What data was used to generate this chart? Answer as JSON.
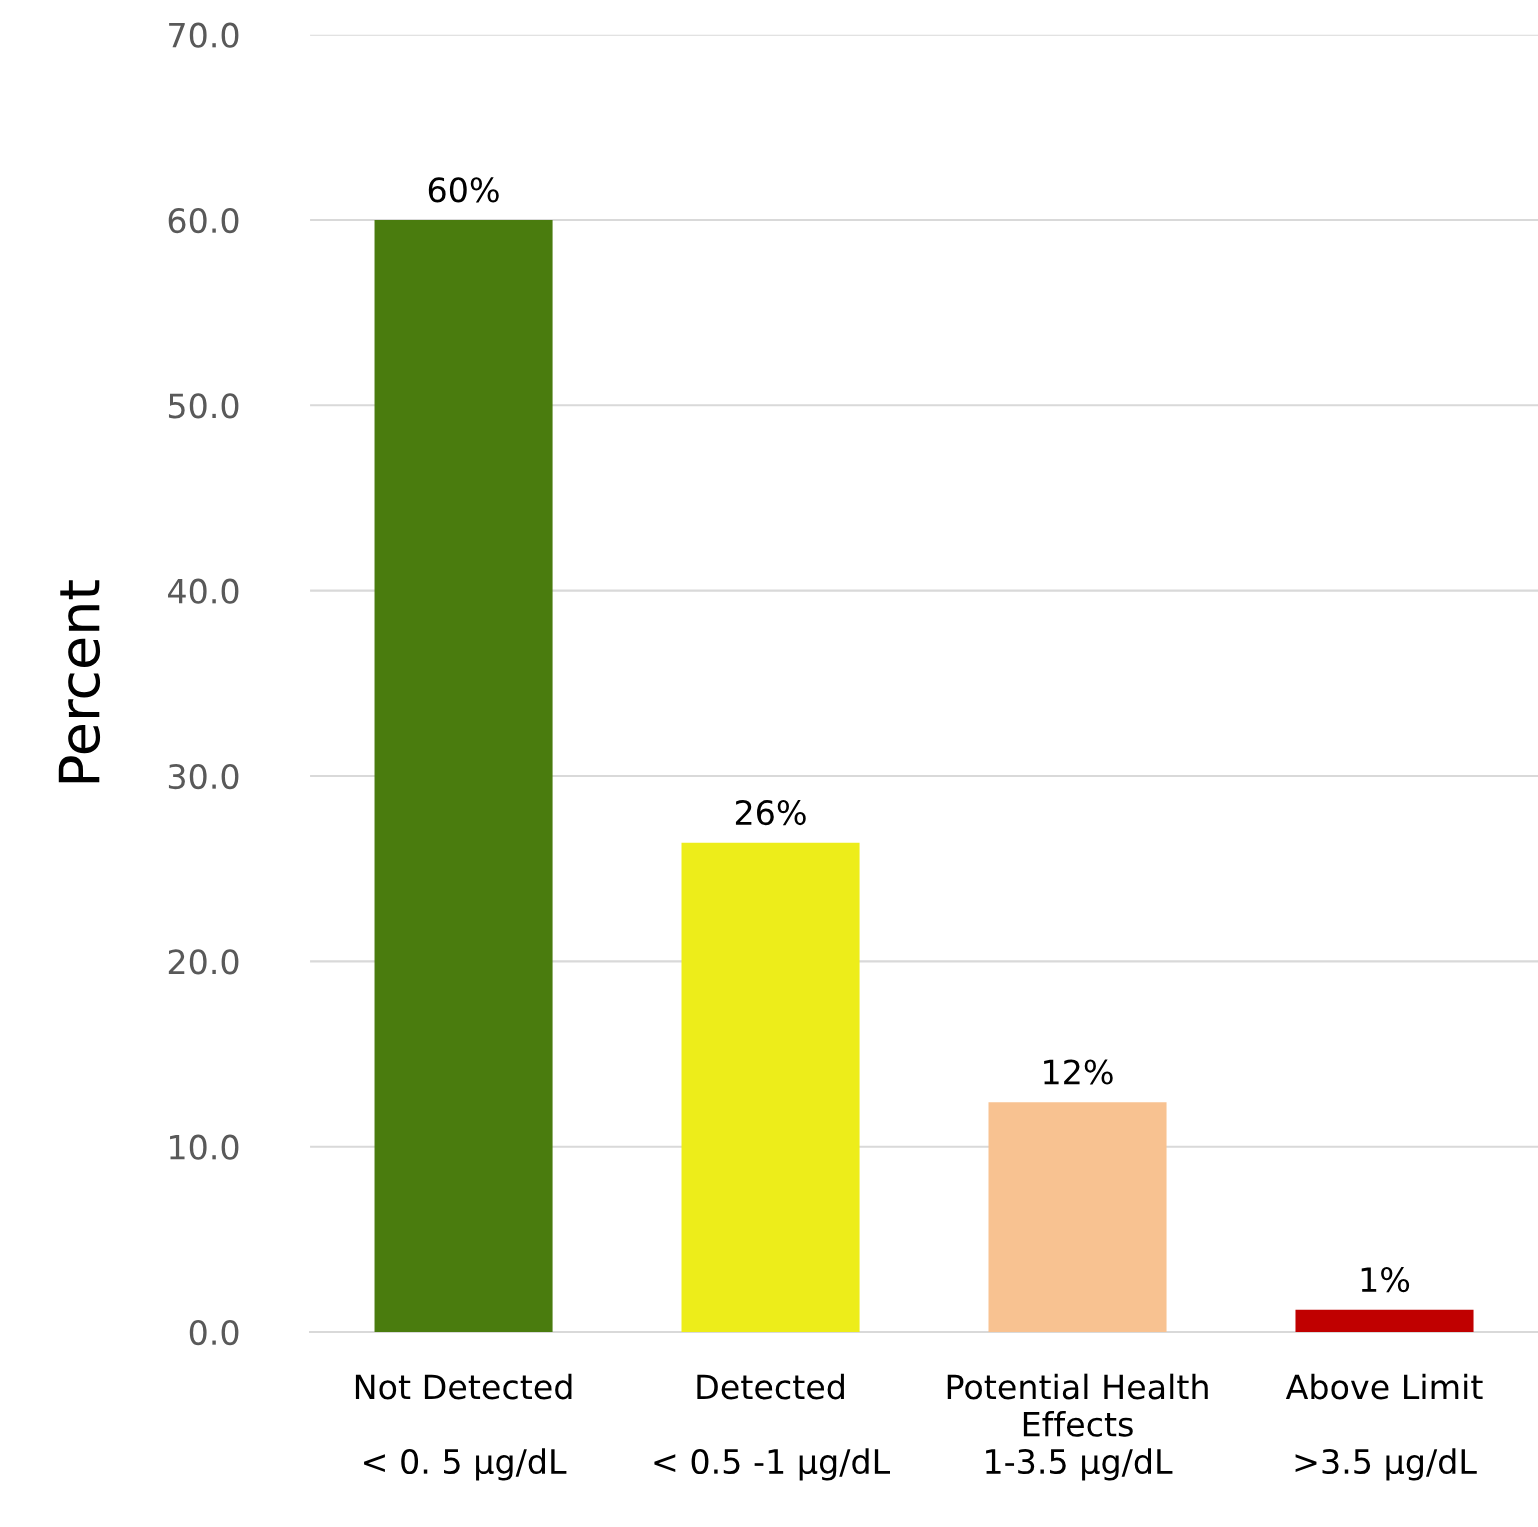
{
  "chart_data": {
    "type": "bar",
    "ylabel": "Percent",
    "categories": [
      "Not Detected\n\n< 0. 5 µg/dL",
      "Detected\n\n< 0.5 -1 µg/dL",
      "Potential Health\nEffects\n1-3.5 µg/dL",
      "Above Limit\n\n>3.5 µg/dL"
    ],
    "values": [
      60.0,
      26.4,
      12.4,
      1.2
    ],
    "colors": [
      "#4a7c0e",
      "#eded1a",
      "#f8c291",
      "#c00000"
    ],
    "value_labels": [
      "60%",
      "26%",
      "12%",
      "1%"
    ],
    "ylim": [
      0,
      70
    ],
    "yticks": [
      {
        "value": 0,
        "label": "0.0"
      },
      {
        "value": 10,
        "label": "10.0"
      },
      {
        "value": 20,
        "label": "20.0"
      },
      {
        "value": 30,
        "label": "30.0"
      },
      {
        "value": 40,
        "label": "40.0"
      },
      {
        "value": 50,
        "label": "50.0"
      },
      {
        "value": 60,
        "label": "60.0"
      },
      {
        "value": 70,
        "label": "70.0"
      }
    ],
    "grid": "y",
    "legend": false
  }
}
